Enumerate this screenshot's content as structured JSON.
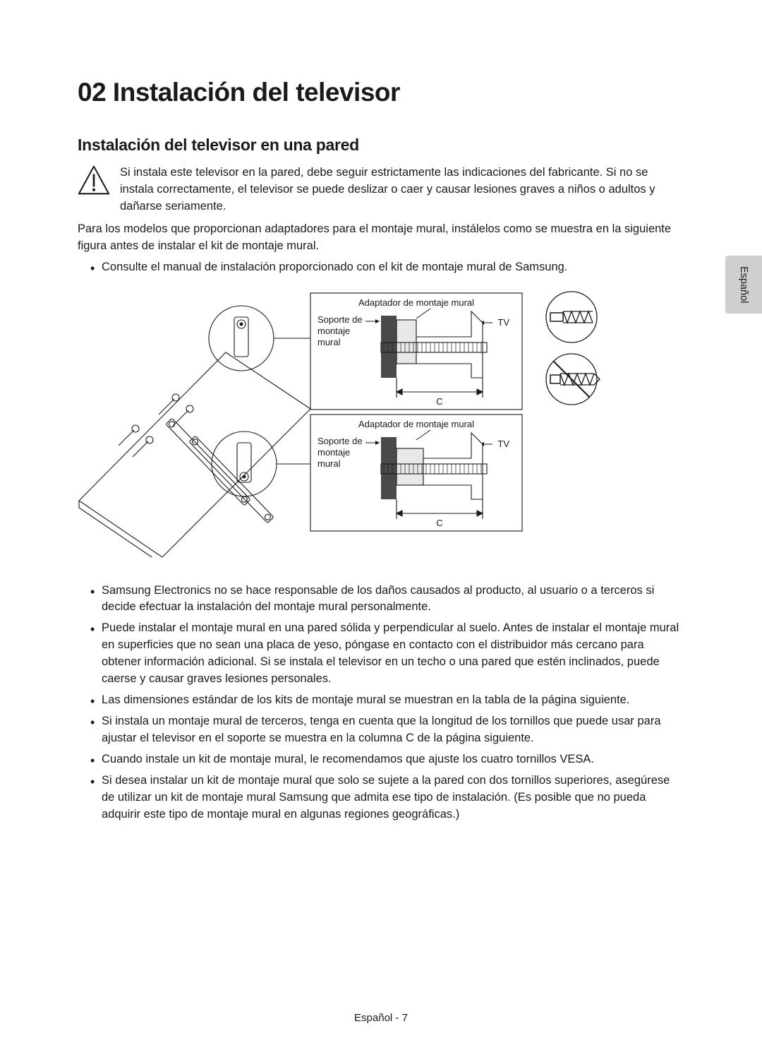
{
  "heading": "02  Instalación del televisor",
  "subheading": "Instalación del televisor en una pared",
  "warning_text": "Si instala este televisor en la pared, debe seguir estrictamente las indicaciones del fabricante. Si no se instala correctamente, el televisor se puede deslizar o caer y causar lesiones graves a niños o adultos y dañarse seriamente.",
  "para1": "Para los modelos que proporcionan adaptadores para el montaje mural, instálelos como se muestra en la siguiente figura antes de instalar el kit de montaje mural.",
  "bullet_consult": "Consulte el manual de instalación proporcionado con el kit de montaje mural de Samsung.",
  "diagram": {
    "adapter_label": "Adaptador de montaje mural",
    "bracket_label_1": "Soporte de",
    "bracket_label_2": "montaje",
    "bracket_label_3": "mural",
    "tv_label": "TV",
    "c_label": "C"
  },
  "bullets_after": [
    "Samsung Electronics no se hace responsable de los daños causados al producto, al usuario o a terceros si decide efectuar la instalación del montaje mural personalmente.",
    "Puede instalar el montaje mural en una pared sólida y perpendicular al suelo. Antes de instalar el montaje mural en superficies que no sean una placa de yeso, póngase en contacto con el distribuidor más cercano para obtener información adicional. Si se instala el televisor en un techo o una pared que estén inclinados, puede caerse y causar graves lesiones personales.",
    "Las dimensiones estándar de los kits de montaje mural se muestran en la tabla de la página siguiente.",
    "Si instala un montaje mural de terceros, tenga en cuenta que la longitud de los tornillos que puede usar para ajustar el televisor en el soporte se muestra en la columna C de la página siguiente.",
    "Cuando instale un kit de montaje mural, le recomendamos que ajuste los cuatro tornillos VESA.",
    "Si desea instalar un kit de montaje mural que solo se sujete a la pared con dos tornillos superiores, asegúrese de utilizar un kit de montaje mural Samsung que admita ese tipo de instalación. (Es posible que no pueda adquirir este tipo de montaje mural en algunas regiones geográficas.)"
  ],
  "lang_tab": "Español",
  "page_footer": "Español - 7"
}
